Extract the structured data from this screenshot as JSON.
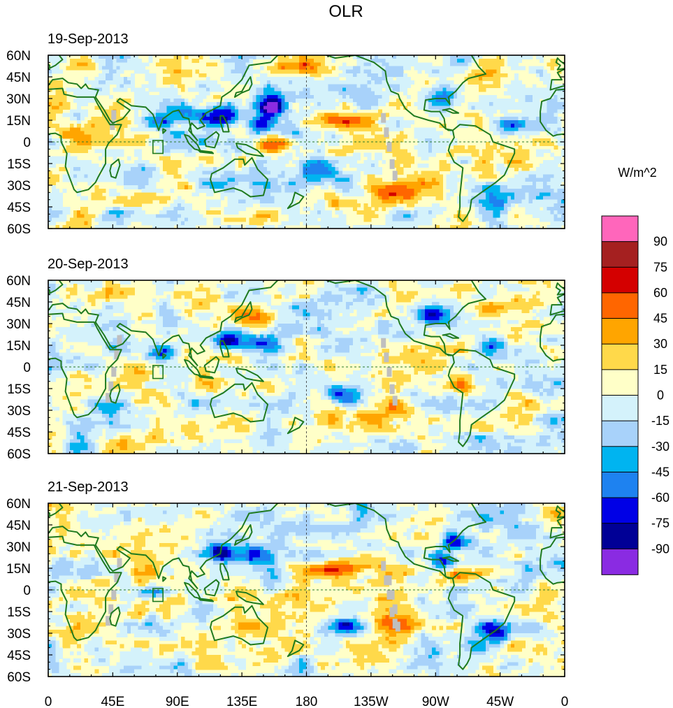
{
  "title": "OLR",
  "colorbar": {
    "unit_label": "W/m^2",
    "levels": [
      "90",
      "75",
      "60",
      "45",
      "30",
      "15",
      "0",
      "-15",
      "-30",
      "-45",
      "-60",
      "-75",
      "-90"
    ],
    "colors": [
      "#ff66bb",
      "#a52020",
      "#d40000",
      "#ff6600",
      "#ffa500",
      "#ffd94a",
      "#ffffc8",
      "#d4f2fb",
      "#a8d2fa",
      "#00b4f0",
      "#1e82f0",
      "#0000e6",
      "#000096",
      "#8a2be2"
    ]
  },
  "axes": {
    "lat_ticks": [
      "60N",
      "45N",
      "30N",
      "15N",
      "0",
      "15S",
      "30S",
      "45S",
      "60S"
    ],
    "lon_ticks": [
      "0",
      "45E",
      "90E",
      "135E",
      "180",
      "135W",
      "90W",
      "45W",
      "0"
    ]
  },
  "panels": [
    {
      "date": "19-Sep-2013"
    },
    {
      "date": "20-Sep-2013"
    },
    {
      "date": "21-Sep-2013"
    }
  ],
  "map_colors": {
    "coast": "#1f7a1f",
    "border": "#1f7a1f",
    "missing": "#bfbfbf",
    "background": "#ffffc8"
  }
}
